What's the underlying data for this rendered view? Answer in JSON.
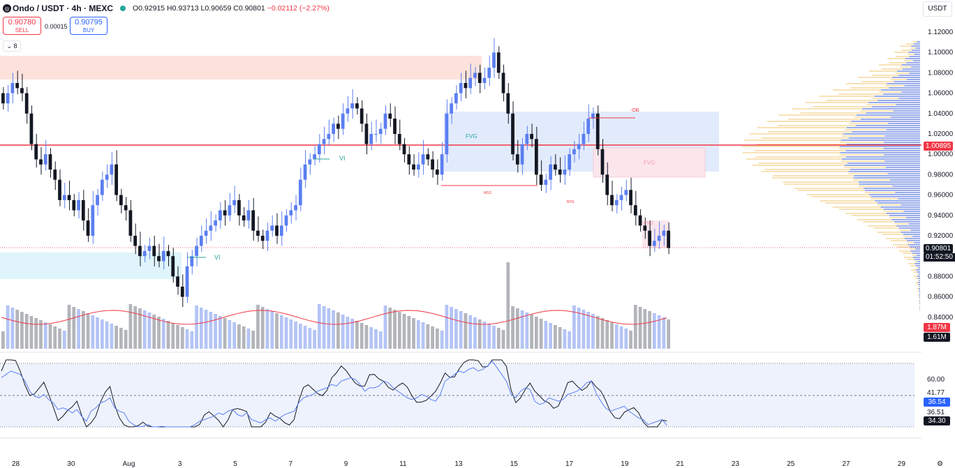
{
  "header": {
    "symbol": "Ondo / USDT · 4h · MEXC",
    "open": "O0.92915",
    "high": "H0.93713",
    "low": "L0.90659",
    "close": "C0.90801",
    "change": "−0.02112 (−2.27%)"
  },
  "trade": {
    "sell_price": "0.90780",
    "sell_label": "SELL",
    "spread": "0.00015",
    "buy_price": "0.90795",
    "buy_label": "BUY"
  },
  "indicators_toggle": "8",
  "currency": "USDT",
  "price_axis": [
    "1.12000",
    "1.10000",
    "1.08000",
    "1.06000",
    "1.04000",
    "1.02000",
    "1.00000",
    "0.98000",
    "0.96000",
    "0.94000",
    "0.92000",
    "0.88000",
    "0.86000",
    "0.84000"
  ],
  "price_tags": {
    "red_line": "1.00895",
    "last": "0.90801",
    "countdown": "01:52:50",
    "vol1": "1.87M",
    "vol2": "1.61M"
  },
  "rsi_axis": {
    "upper": "60.00",
    "mid": "41.77",
    "low": "36.51"
  },
  "rsi_tags": {
    "a": "36.54",
    "b": "34.30"
  },
  "time_axis": [
    "28",
    "30",
    "Aug",
    "3",
    "5",
    "7",
    "9",
    "11",
    "13",
    "15",
    "17",
    "19",
    "21",
    "23",
    "25",
    "27",
    "29"
  ],
  "labels": {
    "vi": "VI",
    "fvg": "FVG",
    "ob": "-OB",
    "mss": "MSS",
    "bos": "BOS"
  },
  "colors": {
    "up": "#5b7ff0",
    "down": "#131722",
    "red_line": "#f23645",
    "rsi_ma": "#5b7ff0"
  },
  "chart_data": {
    "type": "candlestick",
    "close_series": [
      1.05,
      1.06,
      1.07,
      1.065,
      1.06,
      1.04,
      1.01,
      0.995,
      0.99,
      1.0,
      0.985,
      0.975,
      0.955,
      0.96,
      0.955,
      0.945,
      0.955,
      0.935,
      0.92,
      0.95,
      0.96,
      0.975,
      0.98,
      0.99,
      0.96,
      0.95,
      0.945,
      0.92,
      0.91,
      0.9,
      0.905,
      0.91,
      0.9,
      0.895,
      0.905,
      0.9,
      0.88,
      0.87,
      0.86,
      0.89,
      0.9,
      0.91,
      0.92,
      0.925,
      0.93,
      0.935,
      0.945,
      0.94,
      0.95,
      0.955,
      0.94,
      0.935,
      0.945,
      0.925,
      0.92,
      0.915,
      0.925,
      0.93,
      0.92,
      0.93,
      0.94,
      0.945,
      0.95,
      0.975,
      0.99,
      0.995,
      1.0,
      1.01,
      1.015,
      1.02,
      1.03,
      1.025,
      1.04,
      1.045,
      1.05,
      1.045,
      1.03,
      1.01,
      1.02,
      1.02,
      1.025,
      1.04,
      1.035,
      1.02,
      1.01,
      1.0,
      0.99,
      0.985,
      0.99,
      1.0,
      0.995,
      0.985,
      0.98,
      1.0,
      1.04,
      1.05,
      1.06,
      1.07,
      1.065,
      1.075,
      1.08,
      1.07,
      1.075,
      1.085,
      1.1,
      1.08,
      1.06,
      1.04,
      1.0,
      0.99,
      1.01,
      1.02,
      1.015,
      0.98,
      0.97,
      0.975,
      0.99,
      0.985,
      0.98,
      0.985,
      1.0,
      1.005,
      1.01,
      1.02,
      1.035,
      1.04,
      1.005,
      0.98,
      0.96,
      0.95,
      0.955,
      0.96,
      0.965,
      0.95,
      0.94,
      0.93,
      0.925,
      0.91,
      0.915,
      0.92,
      0.925,
      0.908
    ]
  }
}
